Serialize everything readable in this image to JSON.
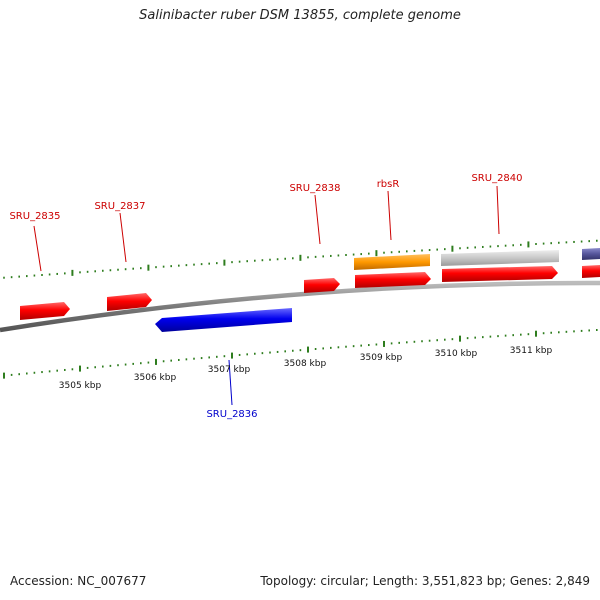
{
  "title": "Salinibacter ruber DSM 13855, complete genome",
  "footer": {
    "accession": "Accession: NC_007677",
    "summary": "Topology: circular; Length: 3,551,823 bp; Genes: 2,849"
  },
  "colors": {
    "cds_forward": "#ff0000",
    "cds_reverse": "#0000ee",
    "orange_feature": "#ff9900",
    "gray_feature": "#c8c8c8",
    "purple_feature": "#55559a",
    "backbone": "#8a8a8a",
    "tick": "#2e7d1e",
    "label_forward": "#cc0000",
    "label_reverse": "#0000cc"
  },
  "gene_labels": [
    {
      "id": "SRU_2835",
      "strand": "forward"
    },
    {
      "id": "SRU_2837",
      "strand": "forward"
    },
    {
      "id": "SRU_2838",
      "strand": "forward"
    },
    {
      "id": "rbsR",
      "strand": "forward"
    },
    {
      "id": "SRU_2840",
      "strand": "forward"
    },
    {
      "id": "SRU_2836",
      "strand": "reverse"
    }
  ],
  "kbp_labels": [
    "3505 kbp",
    "3506 kbp",
    "3507 kbp",
    "3508 kbp",
    "3509 kbp",
    "3510 kbp",
    "3511 kbp"
  ]
}
